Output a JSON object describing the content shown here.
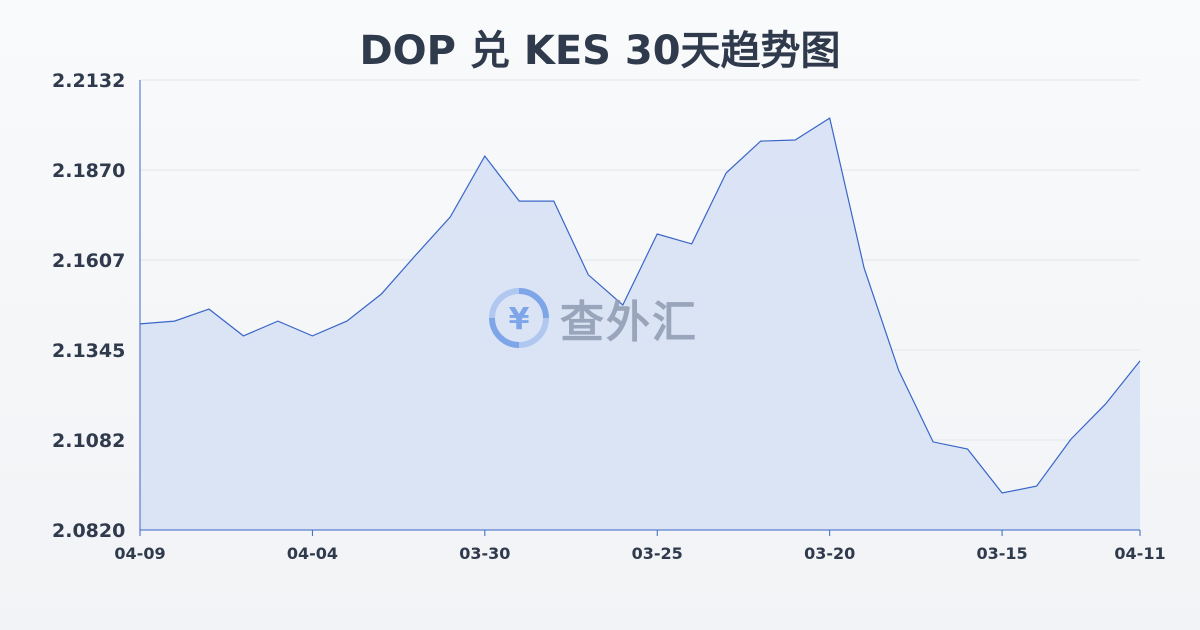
{
  "chart_data": {
    "type": "area",
    "title": "DOP 兑 KES 30天趋势图",
    "xlabel": "",
    "ylabel": "",
    "ylim": [
      2.082,
      2.2132
    ],
    "yticks": [
      "2.2132",
      "2.1870",
      "2.1607",
      "2.1345",
      "2.1082",
      "2.0820"
    ],
    "xticks": [
      {
        "index": 0,
        "label": "04-09"
      },
      {
        "index": 5,
        "label": "04-04"
      },
      {
        "index": 10,
        "label": "03-30"
      },
      {
        "index": 15,
        "label": "03-25"
      },
      {
        "index": 20,
        "label": "03-20"
      },
      {
        "index": 25,
        "label": "03-15"
      },
      {
        "index": 29,
        "label": "04-11"
      }
    ],
    "grid": true,
    "series": [
      {
        "name": "DOP/KES",
        "values": [
          2.1421,
          2.1429,
          2.1464,
          2.1386,
          2.1429,
          2.1386,
          2.1429,
          2.1508,
          2.1622,
          2.1733,
          2.191,
          2.1779,
          2.1779,
          2.1564,
          2.1476,
          2.1683,
          2.1654,
          2.1861,
          2.1954,
          2.1957,
          2.2021,
          2.1584,
          2.1286,
          2.1077,
          2.1056,
          2.0928,
          2.0948,
          2.1085,
          2.1187,
          2.1313
        ]
      }
    ],
    "colors": {
      "line": "#3a66c8",
      "fill": "#d6e0f5",
      "grid": "#e3e6ec"
    }
  },
  "watermark": {
    "text": "查外汇",
    "icon": "yen-exchange-icon"
  }
}
